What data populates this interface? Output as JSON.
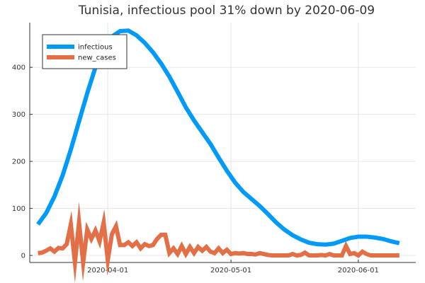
{
  "chart_data": {
    "type": "line",
    "title": "Tunisia, infectious pool 31% down by 2020-06-09",
    "xlabel": "",
    "ylabel": "",
    "x_range": [
      "2020-03-13",
      "2020-06-15"
    ],
    "ylim": [
      -15,
      495
    ],
    "x_ticks": [
      "2020-04-01",
      "2020-05-01",
      "2020-06-01"
    ],
    "x_tick_labels": [
      "2020-04-01",
      "2020-05-01",
      "2020-06-01"
    ],
    "y_ticks": [
      0,
      100,
      200,
      300,
      400
    ],
    "y_tick_labels": [
      "0",
      "100",
      "200",
      "300",
      "400"
    ],
    "grid": true,
    "legend_position": "top-left",
    "series": [
      {
        "name": "infectious",
        "color": "#009af9",
        "points": [
          [
            "2020-03-15",
            66
          ],
          [
            "2020-03-17",
            90
          ],
          [
            "2020-03-19",
            125
          ],
          [
            "2020-03-21",
            170
          ],
          [
            "2020-03-23",
            225
          ],
          [
            "2020-03-25",
            285
          ],
          [
            "2020-03-27",
            345
          ],
          [
            "2020-03-29",
            400
          ],
          [
            "2020-03-31",
            440
          ],
          [
            "2020-04-02",
            465
          ],
          [
            "2020-04-04",
            477
          ],
          [
            "2020-04-06",
            478
          ],
          [
            "2020-04-08",
            468
          ],
          [
            "2020-04-10",
            452
          ],
          [
            "2020-04-12",
            432
          ],
          [
            "2020-04-14",
            408
          ],
          [
            "2020-04-16",
            380
          ],
          [
            "2020-04-18",
            348
          ],
          [
            "2020-04-20",
            315
          ],
          [
            "2020-04-22",
            287
          ],
          [
            "2020-04-24",
            262
          ],
          [
            "2020-04-26",
            237
          ],
          [
            "2020-04-28",
            208
          ],
          [
            "2020-04-30",
            180
          ],
          [
            "2020-05-02",
            155
          ],
          [
            "2020-05-04",
            135
          ],
          [
            "2020-05-06",
            120
          ],
          [
            "2020-05-08",
            105
          ],
          [
            "2020-05-10",
            88
          ],
          [
            "2020-05-12",
            70
          ],
          [
            "2020-05-14",
            55
          ],
          [
            "2020-05-16",
            43
          ],
          [
            "2020-05-18",
            34
          ],
          [
            "2020-05-20",
            27
          ],
          [
            "2020-05-22",
            24
          ],
          [
            "2020-05-24",
            23
          ],
          [
            "2020-05-26",
            25
          ],
          [
            "2020-05-28",
            31
          ],
          [
            "2020-05-30",
            37
          ],
          [
            "2020-06-01",
            40
          ],
          [
            "2020-06-03",
            40
          ],
          [
            "2020-06-05",
            38
          ],
          [
            "2020-06-07",
            35
          ],
          [
            "2020-06-09",
            30
          ],
          [
            "2020-06-11",
            26
          ]
        ]
      },
      {
        "name": "new_cases",
        "color": "#e26f46",
        "points": [
          [
            "2020-03-15",
            5
          ],
          [
            "2020-03-16",
            6
          ],
          [
            "2020-03-17",
            10
          ],
          [
            "2020-03-18",
            15
          ],
          [
            "2020-03-19",
            8
          ],
          [
            "2020-03-20",
            16
          ],
          [
            "2020-03-21",
            15
          ],
          [
            "2020-03-22",
            24
          ],
          [
            "2020-03-23",
            66
          ],
          [
            "2020-03-24",
            -15
          ],
          [
            "2020-03-25",
            70
          ],
          [
            "2020-03-26",
            -15
          ],
          [
            "2020-03-27",
            55
          ],
          [
            "2020-03-28",
            35
          ],
          [
            "2020-03-29",
            53
          ],
          [
            "2020-03-30",
            30
          ],
          [
            "2020-03-31",
            70
          ],
          [
            "2020-04-01",
            -10
          ],
          [
            "2020-04-02",
            45
          ],
          [
            "2020-04-03",
            62
          ],
          [
            "2020-04-04",
            22
          ],
          [
            "2020-04-05",
            22
          ],
          [
            "2020-04-06",
            28
          ],
          [
            "2020-04-07",
            20
          ],
          [
            "2020-04-08",
            28
          ],
          [
            "2020-04-09",
            15
          ],
          [
            "2020-04-10",
            24
          ],
          [
            "2020-04-11",
            20
          ],
          [
            "2020-04-12",
            22
          ],
          [
            "2020-04-13",
            35
          ],
          [
            "2020-04-14",
            44
          ],
          [
            "2020-04-15",
            44
          ],
          [
            "2020-04-16",
            5
          ],
          [
            "2020-04-17",
            15
          ],
          [
            "2020-04-18",
            3
          ],
          [
            "2020-04-19",
            20
          ],
          [
            "2020-04-20",
            3
          ],
          [
            "2020-04-21",
            18
          ],
          [
            "2020-04-22",
            5
          ],
          [
            "2020-04-23",
            18
          ],
          [
            "2020-04-24",
            10
          ],
          [
            "2020-04-25",
            18
          ],
          [
            "2020-04-26",
            8
          ],
          [
            "2020-04-27",
            5
          ],
          [
            "2020-04-28",
            15
          ],
          [
            "2020-04-29",
            5
          ],
          [
            "2020-04-30",
            12
          ],
          [
            "2020-05-01",
            3
          ],
          [
            "2020-05-02",
            5
          ],
          [
            "2020-05-03",
            4
          ],
          [
            "2020-05-04",
            5
          ],
          [
            "2020-05-05",
            3
          ],
          [
            "2020-05-06",
            3
          ],
          [
            "2020-05-07",
            2
          ],
          [
            "2020-05-08",
            5
          ],
          [
            "2020-05-09",
            3
          ],
          [
            "2020-05-10",
            1
          ],
          [
            "2020-05-11",
            0
          ],
          [
            "2020-05-12",
            0
          ],
          [
            "2020-05-13",
            0
          ],
          [
            "2020-05-14",
            0
          ],
          [
            "2020-05-15",
            0
          ],
          [
            "2020-05-16",
            3
          ],
          [
            "2020-05-17",
            0
          ],
          [
            "2020-05-18",
            1
          ],
          [
            "2020-05-19",
            6
          ],
          [
            "2020-05-20",
            0
          ],
          [
            "2020-05-21",
            0
          ],
          [
            "2020-05-22",
            0
          ],
          [
            "2020-05-23",
            1
          ],
          [
            "2020-05-24",
            0
          ],
          [
            "2020-05-25",
            3
          ],
          [
            "2020-05-26",
            0
          ],
          [
            "2020-05-27",
            0
          ],
          [
            "2020-05-28",
            0
          ],
          [
            "2020-05-29",
            20
          ],
          [
            "2020-05-30",
            3
          ],
          [
            "2020-05-31",
            5
          ],
          [
            "2020-06-01",
            0
          ],
          [
            "2020-06-02",
            8
          ],
          [
            "2020-06-03",
            3
          ],
          [
            "2020-06-04",
            0
          ],
          [
            "2020-06-05",
            0
          ],
          [
            "2020-06-06",
            0
          ],
          [
            "2020-06-07",
            0
          ],
          [
            "2020-06-08",
            0
          ],
          [
            "2020-06-09",
            0
          ],
          [
            "2020-06-10",
            0
          ],
          [
            "2020-06-11",
            0
          ]
        ]
      }
    ]
  }
}
